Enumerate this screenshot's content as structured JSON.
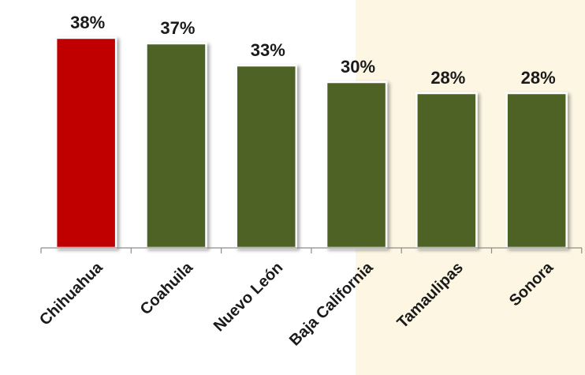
{
  "chart_data": {
    "type": "bar",
    "title": "",
    "xlabel": "",
    "ylabel": "",
    "categories": [
      "Chihuahua",
      "Coahuila",
      "Nuevo León",
      "Baja California",
      "Tamaulipas",
      "Sonora"
    ],
    "values": [
      38,
      37,
      33,
      30,
      28,
      28
    ],
    "data_labels": [
      "38%",
      "37%",
      "33%",
      "30%",
      "28%",
      "28%"
    ],
    "ylim": [
      0,
      38
    ],
    "grid": false,
    "legend": "none",
    "colors": {
      "highlight_bar": "#c00000",
      "bar": "#4f6228",
      "highlight_band": "#fdf6e3",
      "axis": "#8c8c8c",
      "text": "#1a1a1a"
    },
    "highlighted_index": 0
  }
}
